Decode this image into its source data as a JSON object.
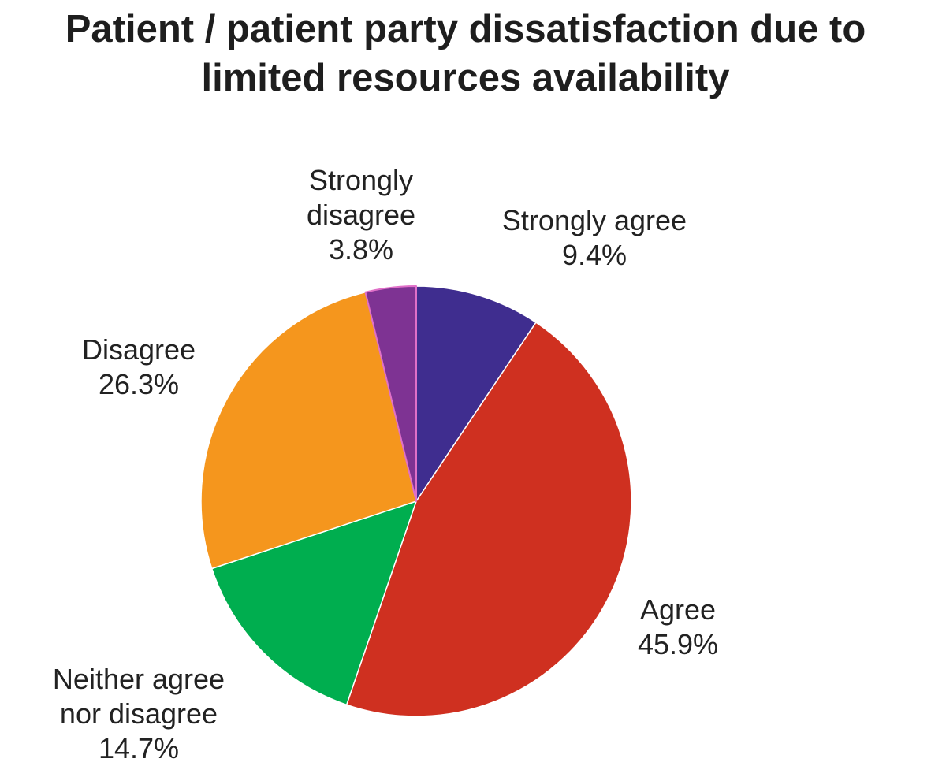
{
  "chart_data": {
    "type": "pie",
    "title_lines": [
      "Patient / patient party dissatisfaction due to",
      "limited resources availability"
    ],
    "start_angle_deg": 0,
    "direction": "clockwise",
    "slices": [
      {
        "label_lines": [
          "Strongly agree"
        ],
        "value": 9.4,
        "value_text": "9.4%",
        "color": "#3f2d8f"
      },
      {
        "label_lines": [
          "Agree"
        ],
        "value": 45.9,
        "value_text": "45.9%",
        "color": "#cf3020"
      },
      {
        "label_lines": [
          "Neither agree",
          "nor disagree"
        ],
        "value": 14.7,
        "value_text": "14.7%",
        "color": "#00ae4f"
      },
      {
        "label_lines": [
          "Disagree"
        ],
        "value": 26.3,
        "value_text": "26.3%",
        "color": "#f5961d"
      },
      {
        "label_lines": [
          "Strongly",
          "disagree"
        ],
        "value": 3.8,
        "value_text": "3.8%",
        "color": "#7e3393"
      }
    ],
    "slice_border_color": "#ffffff",
    "highlight_border_color": "#e070c8"
  }
}
